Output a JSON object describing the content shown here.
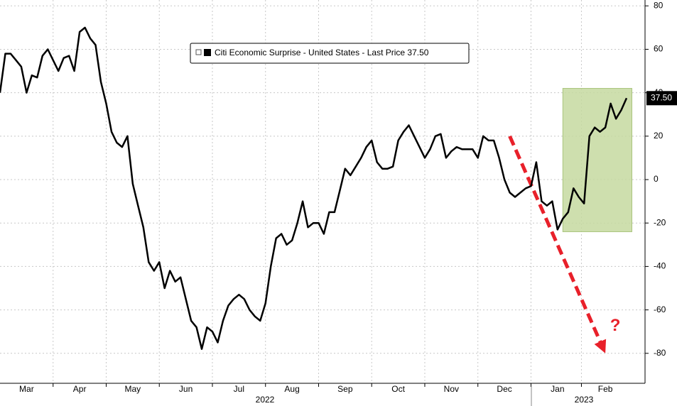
{
  "chart_data": {
    "type": "line",
    "legend": "Citi Economic Surprise - United States - Last Price 37.50",
    "categories": [
      null,
      null,
      null,
      null,
      null,
      "Mar",
      null,
      null,
      null,
      null,
      null,
      null,
      null,
      null,
      null,
      "Apr",
      null,
      null,
      null,
      null,
      null,
      null,
      null,
      null,
      null,
      "May",
      null,
      null,
      null,
      null,
      null,
      null,
      null,
      null,
      null,
      "Jun",
      null,
      null,
      null,
      null,
      null,
      null,
      null,
      null,
      null,
      "Jul",
      null,
      null,
      null,
      null,
      null,
      null,
      null,
      null,
      null,
      "Aug",
      null,
      null,
      null,
      null,
      null,
      null,
      null,
      null,
      null,
      "Sep",
      null,
      null,
      null,
      null,
      null,
      null,
      null,
      null,
      null,
      "Oct",
      null,
      null,
      null,
      null,
      null,
      null,
      null,
      null,
      null,
      "Nov",
      null,
      null,
      null,
      null,
      null,
      null,
      null,
      null,
      null,
      "Dec",
      null,
      null,
      null,
      null,
      null,
      null,
      null,
      null,
      null,
      "Jan",
      null,
      null,
      null,
      null,
      null,
      null,
      null,
      null,
      "Feb",
      null,
      null,
      null,
      null
    ],
    "series": [
      {
        "name": "Citi Economic Surprise - United States",
        "color": "#000000",
        "values": [
          40,
          58,
          58,
          55,
          52,
          40,
          48,
          47,
          57,
          60,
          55,
          50,
          56,
          57,
          50,
          68,
          70,
          65,
          62,
          45,
          35,
          22,
          17,
          15,
          20,
          -2,
          -12,
          -22,
          -38,
          -42,
          -38,
          -50,
          -42,
          -47,
          -45,
          -55,
          -65,
          -68,
          -78,
          -68,
          -70,
          -75,
          -65,
          -58,
          -55,
          -53,
          -55,
          -60,
          -63,
          -65,
          -57,
          -40,
          -27,
          -25,
          -30,
          -28,
          -20,
          -10,
          -22,
          -20,
          -20,
          -25,
          -15,
          -15,
          -5,
          5,
          2,
          6,
          10,
          15,
          18,
          8,
          5,
          5,
          6,
          18,
          22,
          25,
          20,
          15,
          10,
          14,
          20,
          21,
          10,
          13,
          15,
          14,
          14,
          14,
          10,
          20,
          18,
          18,
          10,
          0,
          -6,
          -8,
          -6,
          -4,
          -3,
          8,
          -10,
          -12,
          -10,
          -23,
          -18,
          -15,
          -4,
          -8,
          -11,
          20,
          24,
          22,
          24,
          35,
          28,
          32,
          37.5
        ]
      }
    ],
    "last_price_label": "37.50",
    "years": [
      "2022",
      "2023"
    ],
    "highlight": {
      "x": [
        106,
        119
      ],
      "y": [
        -24,
        42
      ],
      "color": "#c5d9a0"
    },
    "arrow": {
      "from": [
        96,
        20
      ],
      "to": [
        114,
        -80
      ],
      "color": "#e8202a",
      "text": "?"
    },
    "ylim": [
      -93.8,
      82.7
    ],
    "yticks": [
      80,
      60,
      40,
      20,
      0,
      -20,
      -40,
      -60,
      -80
    ],
    "grid": true
  }
}
